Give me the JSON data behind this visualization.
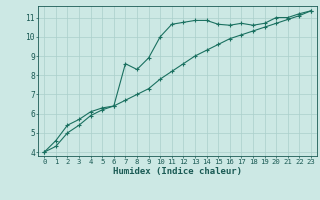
{
  "title": "",
  "xlabel": "Humidex (Indice chaleur)",
  "ylabel": "",
  "bg_color": "#cce8e4",
  "grid_color": "#aacfcb",
  "line_color": "#1a7060",
  "xlim": [
    -0.5,
    23.5
  ],
  "ylim": [
    3.8,
    11.6
  ],
  "xticks": [
    0,
    1,
    2,
    3,
    4,
    5,
    6,
    7,
    8,
    9,
    10,
    11,
    12,
    13,
    14,
    15,
    16,
    17,
    18,
    19,
    20,
    21,
    22,
    23
  ],
  "yticks": [
    4,
    5,
    6,
    7,
    8,
    9,
    10,
    11
  ],
  "line1_x": [
    0,
    1,
    2,
    3,
    4,
    5,
    6,
    7,
    8,
    9,
    10,
    11,
    12,
    13,
    14,
    15,
    16,
    17,
    18,
    19,
    20,
    21,
    22,
    23
  ],
  "line1_y": [
    4.0,
    4.6,
    5.4,
    5.7,
    6.1,
    6.3,
    6.4,
    8.6,
    8.3,
    8.9,
    10.0,
    10.65,
    10.75,
    10.85,
    10.85,
    10.65,
    10.6,
    10.7,
    10.6,
    10.7,
    11.0,
    11.0,
    11.2,
    11.35
  ],
  "line2_x": [
    0,
    1,
    2,
    3,
    4,
    5,
    6,
    7,
    8,
    9,
    10,
    11,
    12,
    13,
    14,
    15,
    16,
    17,
    18,
    19,
    20,
    21,
    22,
    23
  ],
  "line2_y": [
    4.0,
    4.3,
    5.0,
    5.4,
    5.9,
    6.2,
    6.4,
    6.7,
    7.0,
    7.3,
    7.8,
    8.2,
    8.6,
    9.0,
    9.3,
    9.6,
    9.9,
    10.1,
    10.3,
    10.5,
    10.7,
    10.9,
    11.1,
    11.35
  ],
  "tick_fontsize": 5.2,
  "xlabel_fontsize": 6.5
}
